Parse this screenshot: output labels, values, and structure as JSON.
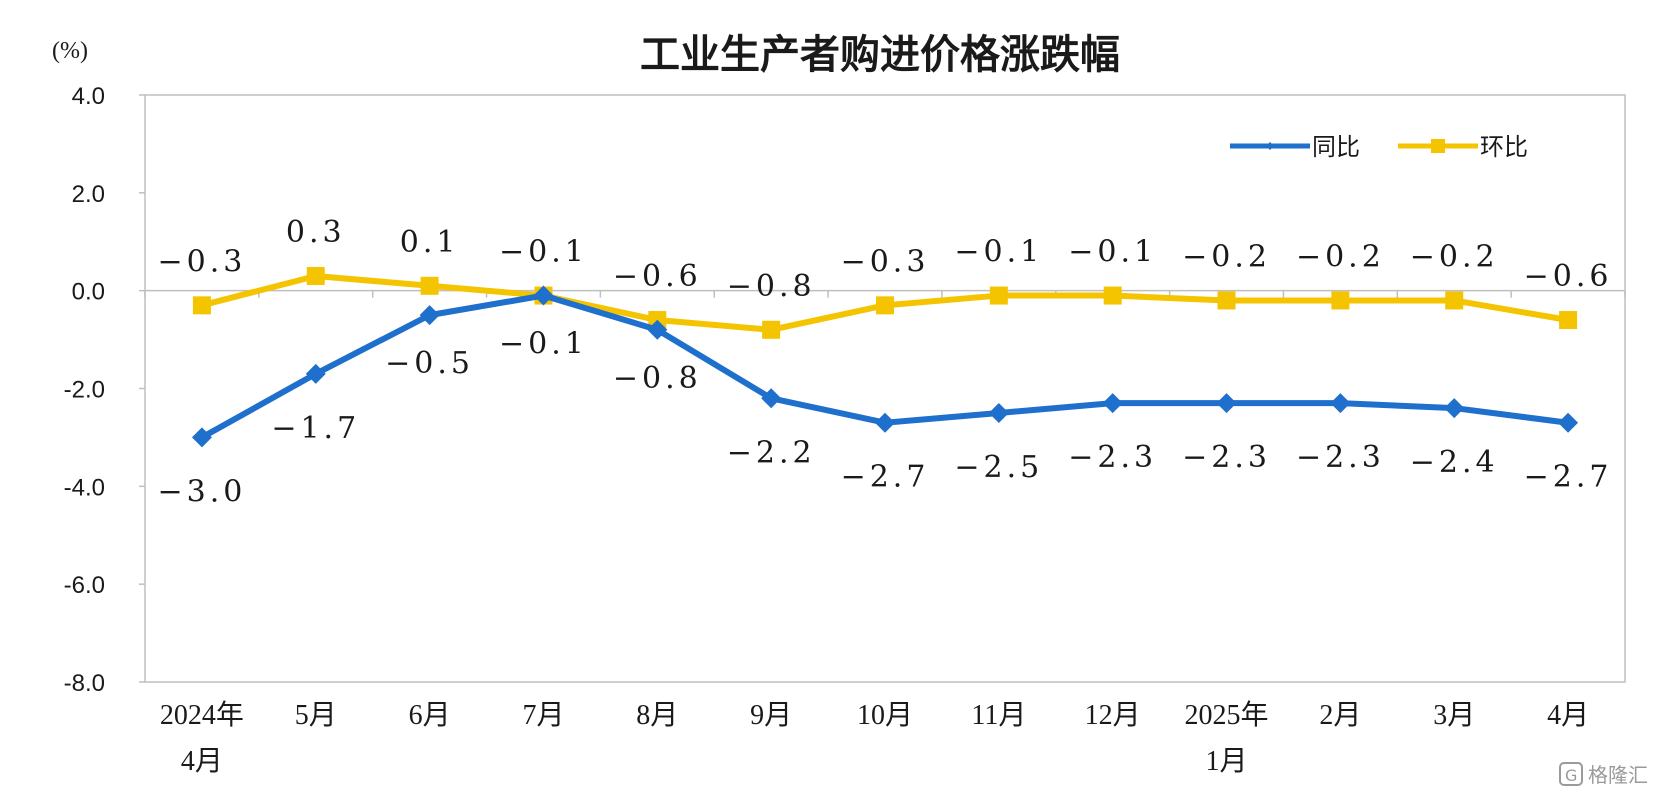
{
  "chart_data": {
    "type": "line",
    "title": "工业生产者购进价格涨跌幅",
    "unit_label": "(%)",
    "ylim": [
      -8.0,
      4.0
    ],
    "yticks": [
      "4.0",
      "2.0",
      "0.0",
      "-2.0",
      "-4.0",
      "-6.0",
      "-8.0"
    ],
    "ytick_values": [
      4,
      2,
      0,
      -2,
      -4,
      -6,
      -8
    ],
    "categories": [
      [
        "2024年",
        "4月"
      ],
      [
        "5月"
      ],
      [
        "6月"
      ],
      [
        "7月"
      ],
      [
        "8月"
      ],
      [
        "9月"
      ],
      [
        "10月"
      ],
      [
        "11月"
      ],
      [
        "12月"
      ],
      [
        "2025年",
        "1月"
      ],
      [
        "2月"
      ],
      [
        "3月"
      ],
      [
        "4月"
      ]
    ],
    "grid": "horizontal-zero-line",
    "legend_position": "top-right",
    "series": [
      {
        "name": "同比",
        "color": "#1f6fcc",
        "marker": "diamond",
        "values": [
          -3.0,
          -1.7,
          -0.5,
          -0.1,
          -0.8,
          -2.2,
          -2.7,
          -2.5,
          -2.3,
          -2.3,
          -2.3,
          -2.4,
          -2.7
        ],
        "labels": [
          "-3.0",
          "-1.7",
          "-0.5",
          "-0.1",
          "-0.8",
          "-2.2",
          "-2.7",
          "-2.5",
          "-2.3",
          "-2.3",
          "-2.3",
          "-2.4",
          "-2.7"
        ]
      },
      {
        "name": "环比",
        "color": "#f5c400",
        "marker": "square",
        "values": [
          -0.3,
          0.3,
          0.1,
          -0.1,
          -0.6,
          -0.8,
          -0.3,
          -0.1,
          -0.1,
          -0.2,
          -0.2,
          -0.2,
          -0.6
        ],
        "labels": [
          "-0.3",
          "0.3",
          "0.1",
          "-0.1",
          "-0.6",
          "-0.8",
          "-0.3",
          "-0.1",
          "-0.1",
          "-0.2",
          "-0.2",
          "-0.2",
          "-0.6"
        ]
      }
    ]
  },
  "watermark": {
    "icon": "gelonghui-logo-icon",
    "text": "格隆汇"
  }
}
